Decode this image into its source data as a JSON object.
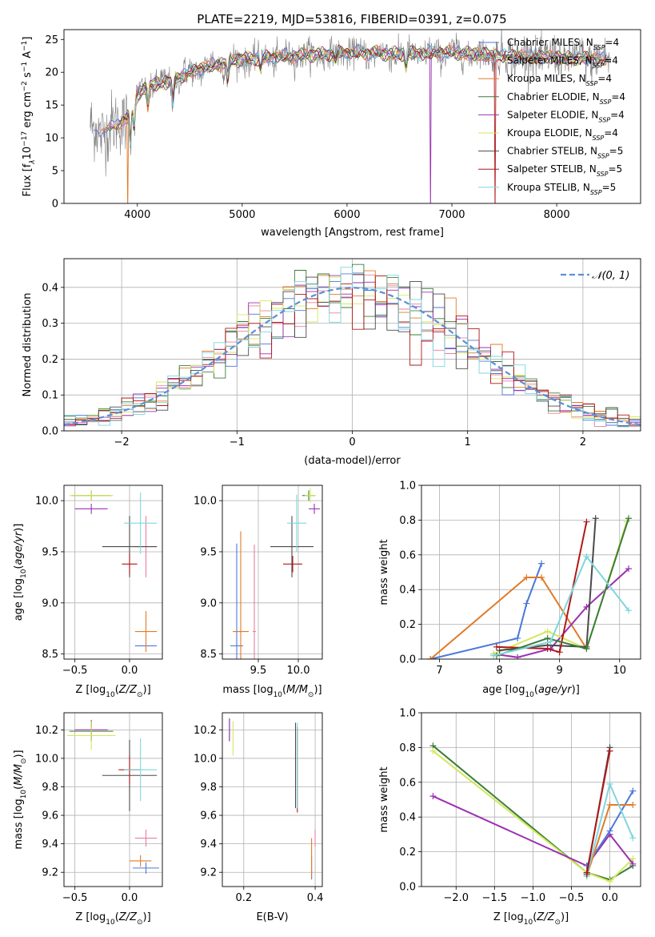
{
  "title": "PLATE=2219, MJD=53816, FIBERID=0391, z=0.075",
  "models": [
    {
      "name": "Chabrier MILES",
      "nssp": "4",
      "color": "#4c78d8"
    },
    {
      "name": "Salpeter MILES",
      "nssp": "4",
      "color": "#e87fa0"
    },
    {
      "name": "Kroupa MILES",
      "nssp": "4",
      "color": "#e07b28"
    },
    {
      "name": "Chabrier ELODIE",
      "nssp": "4",
      "color": "#3a7d3a"
    },
    {
      "name": "Salpeter ELODIE",
      "nssp": "4",
      "color": "#9b30b0"
    },
    {
      "name": "Kroupa ELODIE",
      "nssp": "4",
      "color": "#d4e85a"
    },
    {
      "name": "Chabrier STELIB",
      "nssp": "5",
      "color": "#4a4a4a"
    },
    {
      "name": "Salpeter STELIB",
      "nssp": "5",
      "color": "#b01818"
    },
    {
      "name": "Kroupa STELIB",
      "nssp": "5",
      "color": "#7fd6dc"
    }
  ],
  "chart_data": [
    {
      "id": "spectrum",
      "type": "line",
      "title": "PLATE=2219, MJD=53816, FIBERID=0391, z=0.075",
      "xlabel": "wavelength [Angstrom, rest frame]",
      "ylabel": "Flux [f_λ 10^-17 erg cm^-2 s^-1 A^-1]",
      "xlim": [
        3300,
        8800
      ],
      "ylim": [
        0,
        26.5
      ],
      "xticks": [
        4000,
        5000,
        6000,
        7000,
        8000
      ],
      "yticks": [
        0,
        5,
        10,
        15,
        20,
        25
      ],
      "legend_position": "right",
      "continuum": {
        "x": [
          3550,
          3700,
          3800,
          3900,
          4000,
          4100,
          4300,
          4500,
          4700,
          5000,
          5500,
          6000,
          6500,
          7000,
          7500,
          8000,
          8500
        ],
        "y": [
          11.5,
          11,
          12,
          13,
          16.5,
          18,
          18.5,
          20,
          21,
          22,
          22.5,
          23,
          22.8,
          23,
          22.5,
          22.2,
          22
        ]
      }
    },
    {
      "id": "residuals",
      "type": "histogram",
      "xlabel": "(data-model)/error",
      "ylabel": "Normed distribution",
      "xlim": [
        -2.5,
        2.5
      ],
      "ylim": [
        0,
        0.48
      ],
      "xticks": [
        -2,
        -1,
        0,
        1,
        2
      ],
      "yticks": [
        0.0,
        0.1,
        0.2,
        0.3,
        0.4
      ],
      "reference_curve": "𝒩(0, 1)",
      "legend_position": "top-right"
    },
    {
      "id": "age-vs-Z",
      "type": "scatter",
      "xlabel": "Z [log10(Z/Z⊙)]",
      "ylabel": "age [log10(age/yr)]",
      "xlim": [
        -0.6,
        0.3
      ],
      "ylim": [
        8.45,
        10.15
      ],
      "xticks": [
        -0.5,
        0.0
      ],
      "yticks": [
        8.5,
        9.0,
        9.5,
        10.0
      ],
      "points": [
        {
          "model": 0,
          "x": 0.15,
          "y": 8.58,
          "xerr": 0.1,
          "yerr": 0.0
        },
        {
          "model": 1,
          "x": 0.15,
          "y": 9.55,
          "xerr": 0.1,
          "yerr": 0.3
        },
        {
          "model": 2,
          "x": 0.15,
          "y": 8.72,
          "xerr": 0.1,
          "yerr": 0.2
        },
        {
          "model": 3,
          "x": -0.35,
          "y": 10.05,
          "xerr": 0.18,
          "yerr": 0.05
        },
        {
          "model": 4,
          "x": -0.35,
          "y": 9.92,
          "xerr": 0.15,
          "yerr": 0.05
        },
        {
          "model": 5,
          "x": -0.35,
          "y": 10.05,
          "xerr": 0.2,
          "yerr": 0.05
        },
        {
          "model": 6,
          "x": 0.0,
          "y": 9.55,
          "xerr": 0.25,
          "yerr": 0.3
        },
        {
          "model": 7,
          "x": 0.0,
          "y": 9.38,
          "xerr": 0.07,
          "yerr": 0.1
        },
        {
          "model": 8,
          "x": 0.1,
          "y": 9.78,
          "xerr": 0.15,
          "yerr": 0.3
        }
      ]
    },
    {
      "id": "age-vs-mass",
      "type": "scatter",
      "xlabel": "mass [log10(M/M⊙)]",
      "ylabel": "",
      "xlim": [
        9.05,
        10.3
      ],
      "ylim": [
        8.45,
        10.15
      ],
      "xticks": [
        9.5,
        10.0
      ],
      "yticks": [
        8.5,
        9.0,
        9.5,
        10.0
      ],
      "points": [
        {
          "model": 0,
          "x": 9.23,
          "y": 8.58,
          "xerr": 0.08,
          "yerr": 1.0
        },
        {
          "model": 1,
          "x": 9.45,
          "y": 8.72,
          "xerr": 0.02,
          "yerr": 0.85
        },
        {
          "model": 2,
          "x": 9.28,
          "y": 8.72,
          "xerr": 0.1,
          "yerr": 0.98
        },
        {
          "model": 3,
          "x": 10.13,
          "y": 10.05,
          "xerr": 0.08,
          "yerr": 0.05
        },
        {
          "model": 4,
          "x": 10.2,
          "y": 9.92,
          "xerr": 0.07,
          "yerr": 0.05
        },
        {
          "model": 5,
          "x": 10.15,
          "y": 10.05,
          "xerr": 0.07,
          "yerr": 0.07
        },
        {
          "model": 6,
          "x": 9.92,
          "y": 9.55,
          "xerr": 0.27,
          "yerr": 0.3
        },
        {
          "model": 7,
          "x": 9.93,
          "y": 9.38,
          "xerr": 0.12,
          "yerr": 0.08
        },
        {
          "model": 8,
          "x": 9.98,
          "y": 9.78,
          "xerr": 0.12,
          "yerr": 0.28
        }
      ]
    },
    {
      "id": "weight-vs-age",
      "type": "line",
      "xlabel": "age [log10(age/yr)]",
      "ylabel": "mass weight",
      "xlim": [
        6.7,
        10.35
      ],
      "ylim": [
        0,
        1.0
      ],
      "xticks": [
        7,
        8,
        9,
        10
      ],
      "yticks": [
        0.0,
        0.2,
        0.4,
        0.6,
        0.8,
        1.0
      ],
      "series": [
        {
          "model": 0,
          "x": [
            6.85,
            8.3,
            8.45,
            8.7
          ],
          "y": [
            0.0,
            0.12,
            0.32,
            0.55
          ]
        },
        {
          "model": 2,
          "x": [
            6.85,
            8.45,
            8.7,
            9.45
          ],
          "y": [
            0.0,
            0.47,
            0.47,
            0.06
          ]
        },
        {
          "model": 4,
          "x": [
            7.9,
            8.3,
            8.85,
            9.45,
            10.15
          ],
          "y": [
            0.03,
            0.01,
            0.06,
            0.3,
            0.52
          ]
        },
        {
          "model": 5,
          "x": [
            7.9,
            8.8,
            9.45,
            10.12
          ],
          "y": [
            0.03,
            0.16,
            0.06,
            0.79
          ]
        },
        {
          "model": 6,
          "x": [
            8.0,
            8.8,
            9.45,
            9.6
          ],
          "y": [
            0.05,
            0.08,
            0.07,
            0.81
          ]
        },
        {
          "model": 7,
          "x": [
            7.95,
            8.8,
            9.0,
            9.45
          ],
          "y": [
            0.07,
            0.06,
            0.04,
            0.79
          ]
        },
        {
          "model": 3,
          "x": [
            7.95,
            8.8,
            9.45,
            10.15
          ],
          "y": [
            0.02,
            0.12,
            0.06,
            0.81
          ]
        },
        {
          "model": 8,
          "x": [
            7.9,
            8.85,
            9.45,
            10.15
          ],
          "y": [
            0.02,
            0.1,
            0.59,
            0.28
          ]
        }
      ]
    },
    {
      "id": "mass-vs-Z",
      "type": "scatter",
      "xlabel": "Z [log10(Z/Z⊙)]",
      "ylabel": "mass [log10(M/M⊙)]",
      "xlim": [
        -0.6,
        0.3
      ],
      "ylim": [
        9.1,
        10.32
      ],
      "xticks": [
        -0.5,
        0.0
      ],
      "yticks": [
        9.2,
        9.4,
        9.6,
        9.8,
        10.0,
        10.2
      ],
      "points": [
        {
          "model": 0,
          "x": 0.15,
          "y": 9.23,
          "xerr": 0.12,
          "yerr": 0.04
        },
        {
          "model": 1,
          "x": 0.15,
          "y": 9.44,
          "xerr": 0.1,
          "yerr": 0.06
        },
        {
          "model": 2,
          "x": 0.1,
          "y": 9.28,
          "xerr": 0.1,
          "yerr": 0.04
        },
        {
          "model": 3,
          "x": -0.35,
          "y": 10.19,
          "xerr": 0.2,
          "yerr": 0.07
        },
        {
          "model": 4,
          "x": -0.35,
          "y": 10.2,
          "xerr": 0.15,
          "yerr": 0.07
        },
        {
          "model": 5,
          "x": -0.35,
          "y": 10.16,
          "xerr": 0.22,
          "yerr": 0.1
        },
        {
          "model": 6,
          "x": 0.0,
          "y": 9.88,
          "xerr": 0.25,
          "yerr": 0.25
        },
        {
          "model": 7,
          "x": 0.0,
          "y": 9.92,
          "xerr": 0.1,
          "yerr": 0.1
        },
        {
          "model": 8,
          "x": 0.1,
          "y": 9.92,
          "xerr": 0.15,
          "yerr": 0.22
        }
      ]
    },
    {
      "id": "mass-vs-EBV",
      "type": "scatter",
      "xlabel": "E(B-V)",
      "ylabel": "",
      "xlim": [
        0.14,
        0.42
      ],
      "ylim": [
        9.1,
        10.32
      ],
      "xticks": [
        0.2,
        0.4
      ],
      "yticks": [
        9.2,
        9.4,
        9.6,
        9.8,
        10.0,
        10.2
      ],
      "points": [
        {
          "model": 0,
          "x": 0.39,
          "y": 9.23,
          "xerr": 0.0,
          "yerr": 0.08
        },
        {
          "model": 1,
          "x": 0.4,
          "y": 9.44,
          "xerr": 0.0,
          "yerr": 0.06
        },
        {
          "model": 2,
          "x": 0.39,
          "y": 9.3,
          "xerr": 0.0,
          "yerr": 0.14
        },
        {
          "model": 3,
          "x": 0.16,
          "y": 10.2,
          "xerr": 0.0,
          "yerr": 0.08
        },
        {
          "model": 4,
          "x": 0.16,
          "y": 10.2,
          "xerr": 0.0,
          "yerr": 0.08
        },
        {
          "model": 5,
          "x": 0.17,
          "y": 10.14,
          "xerr": 0.0,
          "yerr": 0.12
        },
        {
          "model": 6,
          "x": 0.345,
          "y": 9.95,
          "xerr": 0.0,
          "yerr": 0.3
        },
        {
          "model": 7,
          "x": 0.35,
          "y": 9.92,
          "xerr": 0.0,
          "yerr": 0.3
        },
        {
          "model": 8,
          "x": 0.35,
          "y": 9.95,
          "xerr": 0.0,
          "yerr": 0.3
        }
      ]
    },
    {
      "id": "weight-vs-Z",
      "type": "line",
      "xlabel": "Z [log10(Z/Z⊙)]",
      "ylabel": "mass weight",
      "xlim": [
        -2.45,
        0.4
      ],
      "ylim": [
        0,
        1.0
      ],
      "xticks": [
        -2.0,
        -1.5,
        -1.0,
        -0.5,
        0.0
      ],
      "yticks": [
        0.0,
        0.2,
        0.4,
        0.6,
        0.8,
        1.0
      ],
      "series": [
        {
          "model": 3,
          "x": [
            -2.3,
            -0.3,
            0.0,
            0.3
          ],
          "y": [
            0.81,
            0.08,
            0.04,
            0.12
          ]
        },
        {
          "model": 5,
          "x": [
            -2.3,
            -0.3,
            0.0,
            0.3
          ],
          "y": [
            0.78,
            0.08,
            0.03,
            0.16
          ]
        },
        {
          "model": 4,
          "x": [
            -2.3,
            -0.3,
            0.0,
            0.3
          ],
          "y": [
            0.52,
            0.12,
            0.3,
            0.13
          ]
        },
        {
          "model": 0,
          "x": [
            -0.3,
            0.0,
            0.3
          ],
          "y": [
            0.12,
            0.32,
            0.55
          ]
        },
        {
          "model": 2,
          "x": [
            -0.3,
            0.0,
            0.3
          ],
          "y": [
            0.06,
            0.47,
            0.47
          ]
        },
        {
          "model": 8,
          "x": [
            -0.3,
            0.0,
            0.3
          ],
          "y": [
            0.06,
            0.59,
            0.28
          ]
        },
        {
          "model": 6,
          "x": [
            -0.3,
            0.0
          ],
          "y": [
            0.07,
            0.8
          ]
        },
        {
          "model": 7,
          "x": [
            -0.3,
            0.0
          ],
          "y": [
            0.08,
            0.78
          ]
        }
      ]
    }
  ]
}
